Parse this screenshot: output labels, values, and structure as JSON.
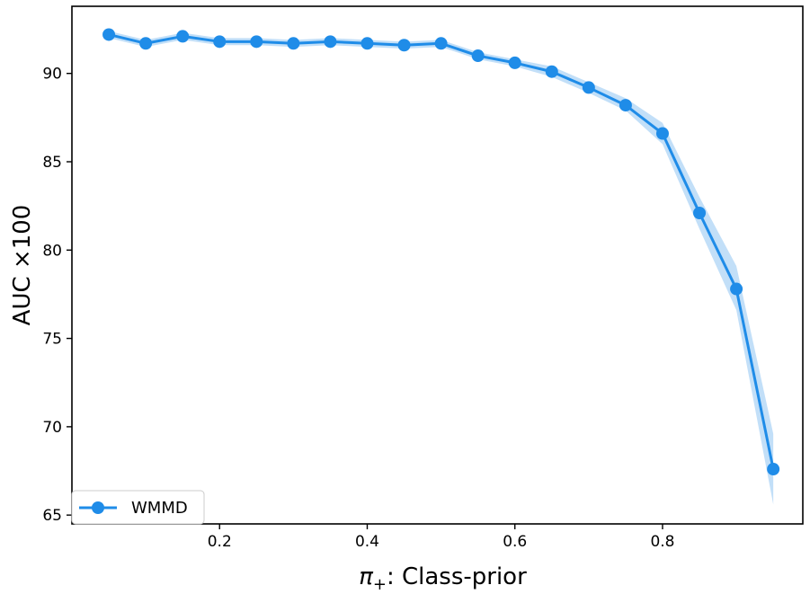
{
  "chart_data": {
    "type": "line",
    "xlabel_symbol": "π",
    "xlabel_subscript": "+",
    "xlabel_text": ": Class-prior",
    "ylabel": "AUC ×100",
    "xlim": [
      0.0,
      0.99
    ],
    "ylim": [
      64.5,
      93.8
    ],
    "xticks": [
      0.2,
      0.4,
      0.6,
      0.8
    ],
    "xtick_labels": [
      "0.2",
      "0.4",
      "0.6",
      "0.8"
    ],
    "yticks": [
      65,
      70,
      75,
      80,
      85,
      90
    ],
    "ytick_labels": [
      "65",
      "70",
      "75",
      "80",
      "85",
      "90"
    ],
    "grid": false,
    "legend_position": "lower-left",
    "series": [
      {
        "name": "WMMD",
        "color": "#1f8ce8",
        "band_color": "#a8d1f5",
        "x": [
          0.05,
          0.1,
          0.15,
          0.2,
          0.25,
          0.3,
          0.35,
          0.4,
          0.45,
          0.5,
          0.55,
          0.6,
          0.65,
          0.7,
          0.75,
          0.8,
          0.85,
          0.9,
          0.95
        ],
        "y": [
          92.2,
          91.7,
          92.1,
          91.8,
          91.8,
          91.7,
          91.8,
          91.7,
          91.6,
          91.7,
          91.0,
          90.6,
          90.1,
          89.2,
          88.2,
          86.6,
          82.1,
          77.8,
          67.6
        ],
        "lower": [
          92.0,
          91.5,
          91.9,
          91.6,
          91.6,
          91.5,
          91.6,
          91.5,
          91.4,
          91.5,
          90.8,
          90.4,
          89.8,
          88.9,
          87.9,
          86.0,
          81.2,
          76.6,
          65.6
        ],
        "upper": [
          92.4,
          91.9,
          92.3,
          92.0,
          92.0,
          91.9,
          92.0,
          91.9,
          91.8,
          91.9,
          91.2,
          90.8,
          90.4,
          89.5,
          88.6,
          87.2,
          83.0,
          79.1,
          69.6
        ]
      }
    ]
  }
}
